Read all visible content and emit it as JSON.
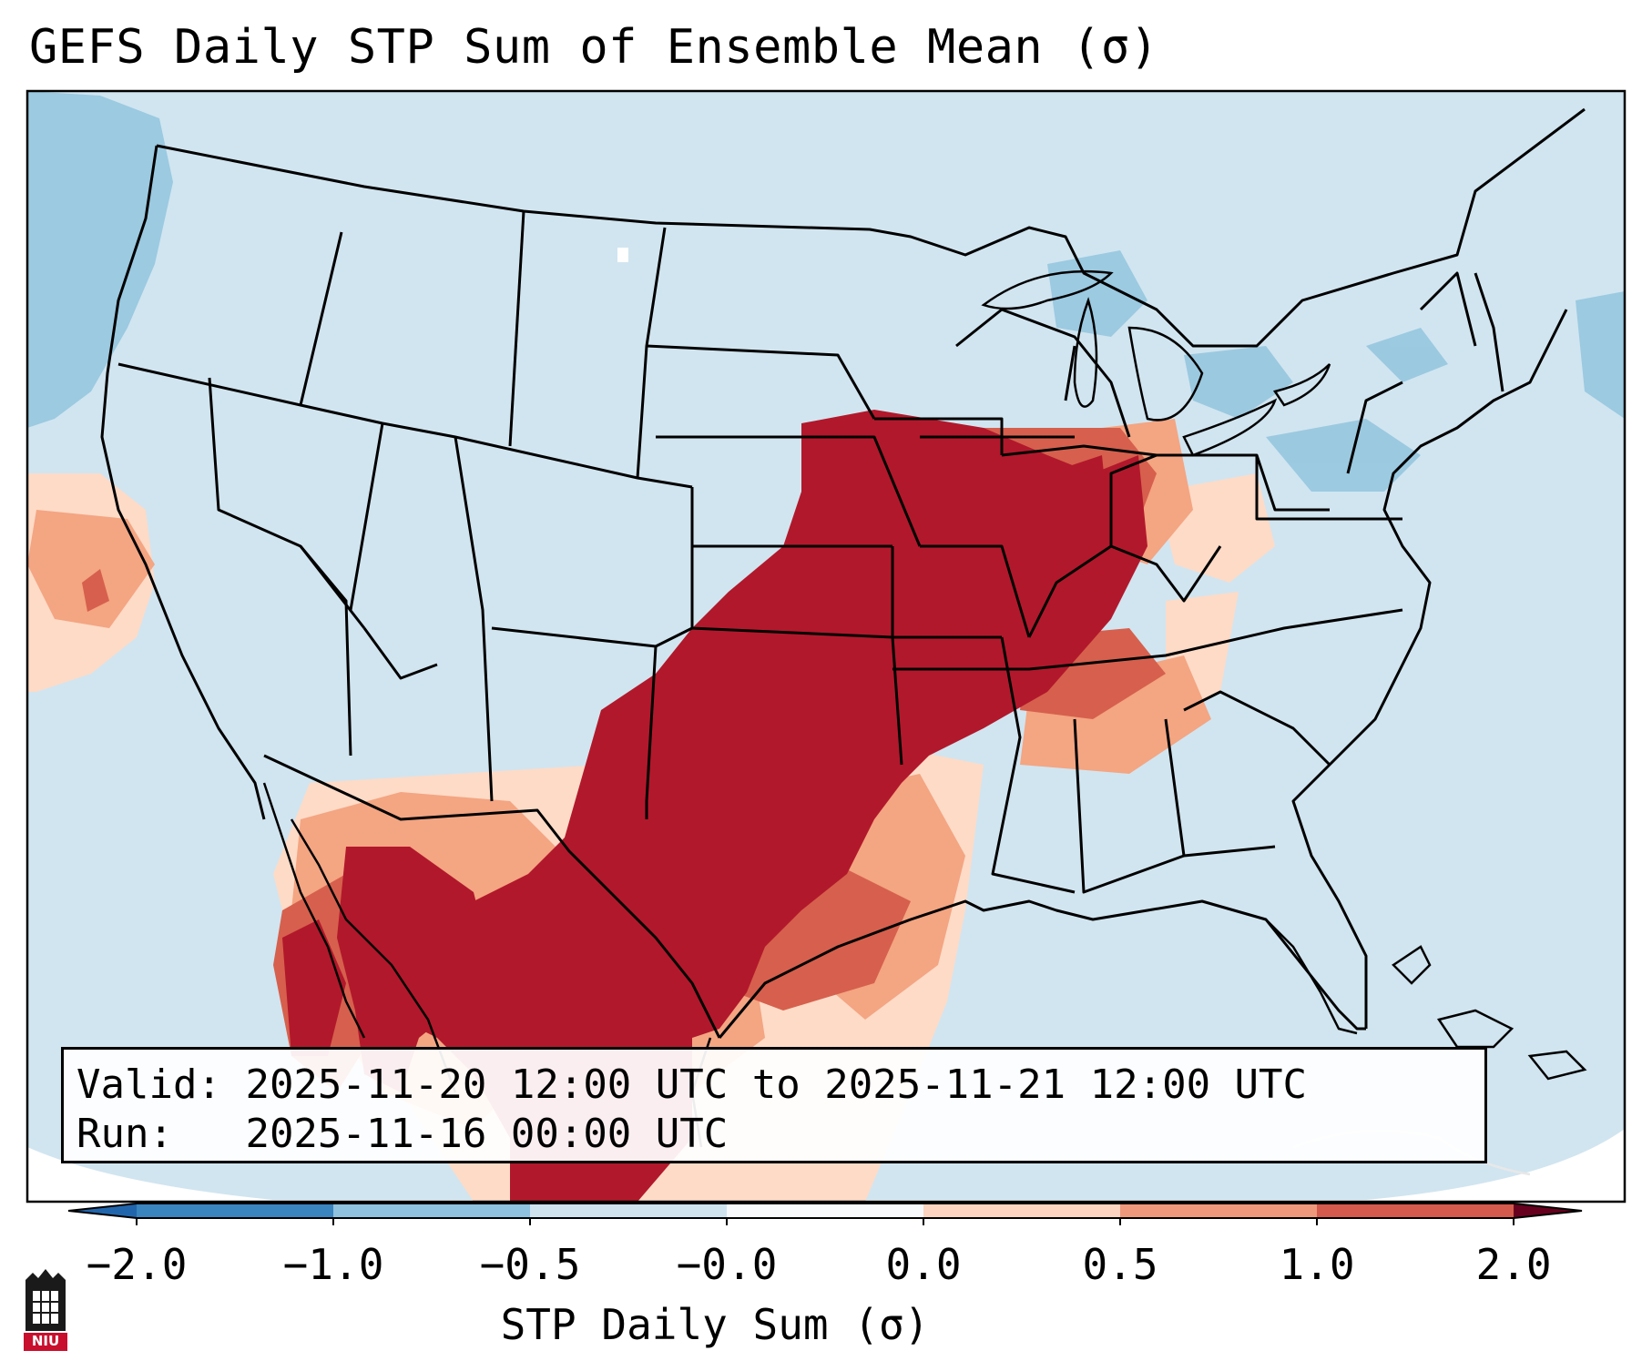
{
  "title": "GEFS Daily STP Sum of Ensemble Mean (σ)",
  "info": {
    "valid_label": "Valid:",
    "valid_value": "2025-11-20 12:00 UTC to 2025-11-21 12:00 UTC",
    "run_label": "Run:",
    "run_value": "2025-11-16 00:00 UTC"
  },
  "colorbar": {
    "label": "STP Daily Sum (σ)",
    "ticks": [
      "−2.0",
      "−1.0",
      "−0.5",
      "−0.0",
      "0.0",
      "0.5",
      "1.0",
      "2.0"
    ],
    "colors": [
      "#3a84bf",
      "#8fc2df",
      "#cfe3ef",
      "#f7f9fb",
      "#fcd4c0",
      "#f0987c",
      "#d35a4c",
      "#b2182b"
    ],
    "under_color": "#2166ac",
    "over_color": "#67001f"
  },
  "map": {
    "ocean_color": "#d1e5f0",
    "land_color": "#d1e5f0",
    "anomaly_colors": {
      "strong_positive": "#b2182b",
      "moderate_positive": "#d6604d",
      "weak_positive": "#f4a582",
      "slight_positive": "#fddbc7",
      "negative": "#92c5de"
    }
  },
  "logo": {
    "text": "NIU",
    "color": "#c8102e"
  }
}
